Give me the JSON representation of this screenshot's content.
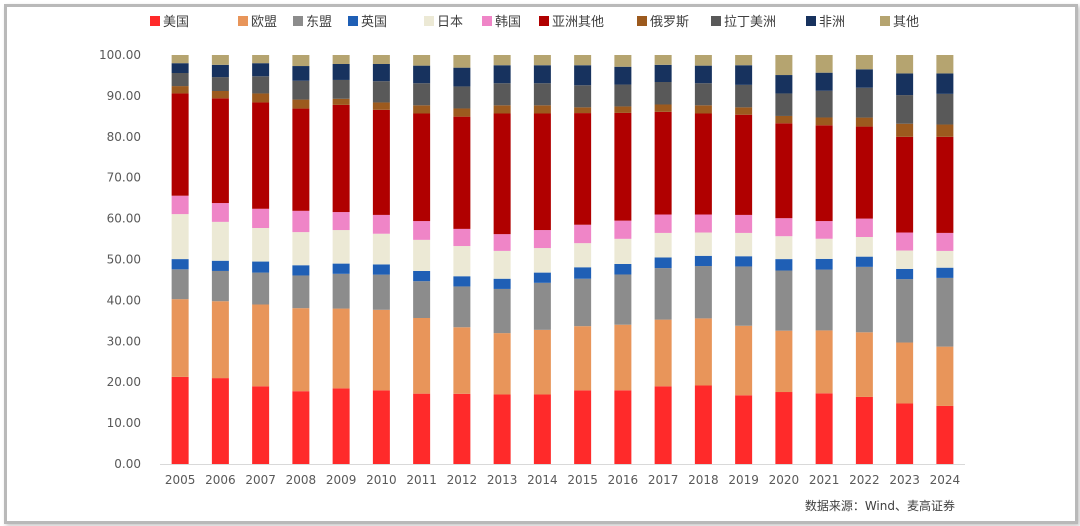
{
  "chart_data": {
    "type": "bar",
    "stacked": true,
    "categories": [
      "2005",
      "2006",
      "2007",
      "2008",
      "2009",
      "2010",
      "2011",
      "2012",
      "2013",
      "2014",
      "2015",
      "2016",
      "2017",
      "2018",
      "2019",
      "2020",
      "2021",
      "2022",
      "2023",
      "2024"
    ],
    "yticks": [
      "0.00",
      "10.00",
      "20.00",
      "30.00",
      "40.00",
      "50.00",
      "60.00",
      "70.00",
      "80.00",
      "90.00",
      "100.00"
    ],
    "ylim": [
      0,
      100
    ],
    "legend_position": "top",
    "grid": false,
    "series": [
      {
        "name": "美国",
        "color": "#ff2a2a",
        "values": [
          21.3,
          21.0,
          19.0,
          17.8,
          18.5,
          18.0,
          17.2,
          17.2,
          17.0,
          17.0,
          18.0,
          18.2,
          19.0,
          19.2,
          16.8,
          17.6,
          17.2,
          16.4,
          14.8,
          14.2
        ]
      },
      {
        "name": "欧盟",
        "color": "#e8955a",
        "values": [
          19.0,
          18.8,
          20.0,
          20.3,
          19.5,
          19.7,
          18.5,
          16.3,
          15.0,
          15.8,
          15.7,
          16.2,
          16.3,
          16.4,
          17.0,
          15.0,
          15.3,
          15.8,
          14.9,
          14.5
        ]
      },
      {
        "name": "东盟",
        "color": "#8c8c8c",
        "values": [
          7.3,
          7.4,
          7.8,
          8.0,
          8.5,
          8.6,
          9.0,
          10.0,
          10.8,
          11.5,
          11.6,
          12.4,
          12.6,
          12.8,
          14.5,
          14.7,
          14.8,
          16.0,
          15.5,
          16.8
        ]
      },
      {
        "name": "英国",
        "color": "#1f5fb5",
        "values": [
          2.5,
          2.5,
          2.7,
          2.5,
          2.5,
          2.5,
          2.5,
          2.5,
          2.5,
          2.5,
          2.8,
          2.6,
          2.6,
          2.5,
          2.5,
          2.8,
          2.6,
          2.5,
          2.5,
          2.5
        ]
      },
      {
        "name": "日本",
        "color": "#ece9d5",
        "values": [
          11.0,
          9.5,
          8.2,
          8.1,
          8.2,
          7.5,
          7.6,
          7.4,
          6.8,
          6.0,
          5.9,
          6.2,
          6.0,
          5.7,
          5.7,
          5.6,
          4.9,
          4.8,
          4.5,
          4.1
        ]
      },
      {
        "name": "韩国",
        "color": "#ef85c7",
        "values": [
          4.5,
          4.6,
          4.7,
          5.2,
          4.4,
          4.6,
          4.6,
          4.2,
          4.1,
          4.4,
          4.5,
          4.5,
          4.5,
          4.4,
          4.4,
          4.4,
          4.3,
          4.5,
          4.4,
          4.4
        ]
      },
      {
        "name": "亚洲其他",
        "color": "#b00000",
        "values": [
          25.0,
          25.6,
          26.0,
          25.0,
          26.2,
          25.7,
          26.3,
          27.5,
          29.5,
          28.5,
          27.3,
          26.6,
          25.1,
          24.7,
          24.5,
          23.2,
          23.3,
          22.5,
          23.4,
          23.5
        ]
      },
      {
        "name": "俄罗斯",
        "color": "#9c5a1e",
        "values": [
          1.8,
          1.8,
          2.2,
          2.2,
          1.5,
          1.8,
          2.0,
          2.0,
          2.0,
          2.0,
          1.4,
          1.6,
          1.8,
          2.0,
          1.8,
          1.8,
          1.9,
          2.2,
          3.2,
          3.0
        ]
      },
      {
        "name": "拉丁美洲",
        "color": "#595959",
        "values": [
          3.2,
          3.4,
          4.2,
          4.6,
          4.6,
          5.2,
          5.4,
          5.4,
          5.4,
          5.4,
          5.4,
          5.4,
          5.5,
          5.4,
          5.5,
          5.5,
          6.5,
          7.3,
          7.0,
          7.5
        ]
      },
      {
        "name": "非洲",
        "color": "#17325e",
        "values": [
          2.4,
          3.0,
          3.2,
          3.6,
          3.9,
          4.2,
          4.3,
          4.6,
          4.4,
          4.4,
          4.9,
          4.4,
          4.2,
          4.3,
          4.8,
          4.5,
          4.4,
          4.5,
          5.3,
          5.0
        ]
      },
      {
        "name": "其他",
        "color": "#b5a470",
        "values": [
          2.0,
          2.4,
          2.0,
          2.7,
          2.2,
          2.2,
          2.6,
          3.1,
          2.5,
          2.5,
          2.5,
          2.9,
          2.4,
          2.6,
          2.5,
          4.9,
          4.3,
          3.5,
          4.5,
          4.5
        ]
      }
    ]
  },
  "source_note": "数据来源：Wind、麦高证券"
}
